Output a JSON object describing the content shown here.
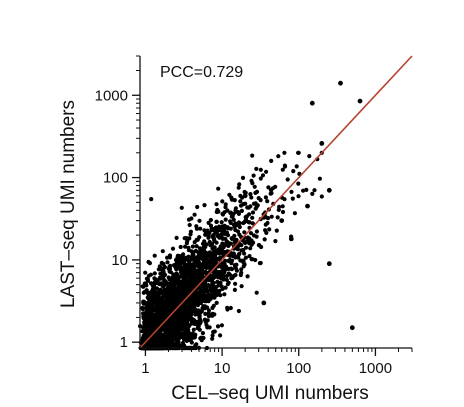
{
  "chart_data": {
    "type": "scatter",
    "xlabel": "CEL–seq UMI numbers",
    "ylabel": "LAST–seq UMI numbers",
    "xscale": "log",
    "yscale": "log",
    "xlim": [
      0.85,
      3000
    ],
    "ylim": [
      0.85,
      3000
    ],
    "x_ticks": [
      1,
      10,
      100,
      1000
    ],
    "x_tick_labels": [
      "1",
      "10",
      "100",
      "1000"
    ],
    "y_ticks": [
      1,
      10,
      100,
      1000
    ],
    "y_tick_labels": [
      "1",
      "10",
      "100",
      "1000"
    ],
    "grid": false,
    "annotation": "PCC=0.729",
    "pcc": 0.729,
    "point_color": "#000000",
    "fit_line": {
      "x": [
        0.85,
        3000
      ],
      "y": [
        0.85,
        3000
      ],
      "color": "#b5432f"
    },
    "outliers": [
      {
        "x": 350,
        "y": 1400
      },
      {
        "x": 150,
        "y": 800
      },
      {
        "x": 630,
        "y": 850
      },
      {
        "x": 200,
        "y": 260
      },
      {
        "x": 250,
        "y": 70
      },
      {
        "x": 130,
        "y": 45
      },
      {
        "x": 250,
        "y": 9
      },
      {
        "x": 500,
        "y": 1.5
      },
      {
        "x": 60,
        "y": 30
      },
      {
        "x": 20,
        "y": 60
      },
      {
        "x": 35,
        "y": 3
      },
      {
        "x": 80,
        "y": 18
      }
    ],
    "point_cloud": {
      "description_n": 2600,
      "x_range": [
        0.85,
        200
      ],
      "y_range": [
        0.85,
        200
      ],
      "seed": 7
    }
  }
}
